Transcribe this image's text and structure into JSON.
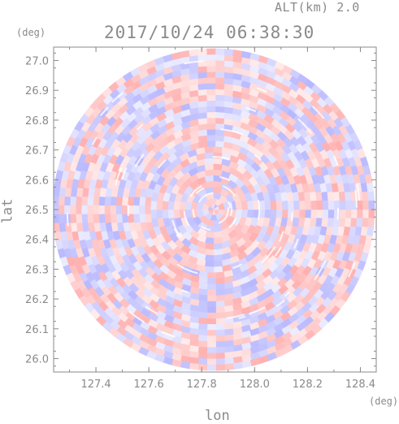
{
  "header": {
    "altitude_label": "ALT(km) 2.0",
    "timestamp": "2017/10/24 06:38:30"
  },
  "colors": {
    "positive": "#ffb0b0",
    "negative": "#b8b8ff",
    "neutral": "#ffffff",
    "axis": "#8a8a8a"
  },
  "chart_data": {
    "type": "heatmap",
    "title": "",
    "xlabel": "lon",
    "ylabel": "lat",
    "x_unit": "(deg)",
    "y_unit": "(deg)",
    "xlim": [
      127.24,
      128.46
    ],
    "ylim": [
      25.955,
      27.045
    ],
    "x_ticks": [
      "127.4",
      "127.6",
      "127.8",
      "128.0",
      "128.2",
      "128.4"
    ],
    "y_ticks": [
      "26.0",
      "26.1",
      "26.2",
      "26.3",
      "26.4",
      "26.5",
      "26.6",
      "26.7",
      "26.8",
      "26.9",
      "27.0"
    ],
    "center": [
      127.845,
      26.5
    ],
    "radius_lat_deg": 0.54,
    "pattern": "polar radar field with alternating positive (red) and negative (blue) patches"
  }
}
